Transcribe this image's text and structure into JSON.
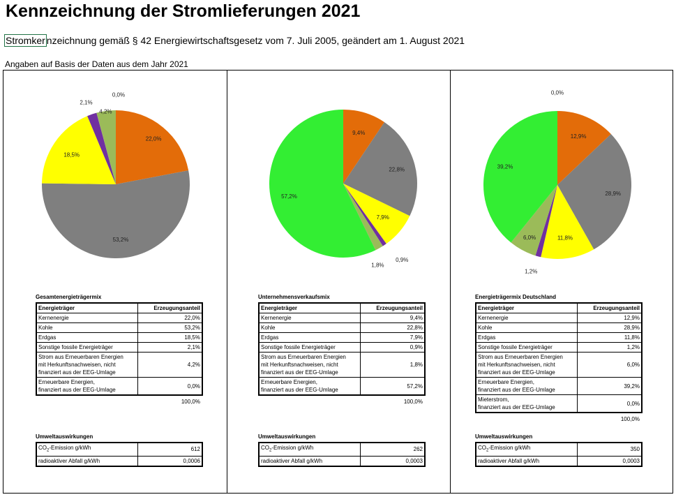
{
  "title": "Kennzeichnung der Stromlieferungen 2021",
  "subtitle_selected": "Stromker",
  "subtitle_rest": "nzeichnung gemäß § 42 Energiewirtschaftsgesetz vom 7. Juli 2005, geändert am 1. August 2021",
  "basis": "Angaben auf Basis der Daten aus dem Jahr 2021",
  "table_headers": {
    "source": "Energieträger",
    "share": "Erzeugungsanteil"
  },
  "env_title": "Umweltauswirkungen",
  "env_labels": {
    "co2_prefix": "CO",
    "co2_sub": "2",
    "co2_suffix": "-Emission g/kWh",
    "waste": "radioaktiver Abfall g/kWh"
  },
  "colors": {
    "kernenergie": "#E36C09",
    "kohle": "#7F7F7F",
    "erdgas": "#FFFF00",
    "sonstige_fossile": "#7030A0",
    "strom_herkunftsnachweise": "#9BBB59",
    "erneuerbare_eeg": "#33EE33"
  },
  "chart_data": [
    {
      "type": "pie",
      "title": "Gesamtenergieträgermix",
      "labels": [
        "Kernenergie",
        "Kohle",
        "Erdgas",
        "Sonstige fossile Energieträger",
        "Strom aus Erneuerbaren Energien mit Herkunftsnachweisen, nicht finanziert aus der EEG-Umlage",
        "Erneuerbare Energien, finanziert aus der EEG-Umlage"
      ],
      "values": [
        22.0,
        53.2,
        18.5,
        2.1,
        4.2,
        0.0
      ],
      "value_labels": [
        "22,0%",
        "53,2%",
        "18,5%",
        "2,1%",
        "4,2%",
        "0,0%"
      ]
    },
    {
      "type": "pie",
      "title": "Unternehmensverkaufsmix",
      "labels": [
        "Kernenergie",
        "Kohle",
        "Erdgas",
        "Sonstige fossile Energieträger",
        "Strom aus Erneuerbaren Energien mit Herkunftsnachweisen, nicht finanziert aus der EEG-Umlage",
        "Erneuerbare Energien, finanziert aus der EEG-Umlage"
      ],
      "values": [
        9.4,
        22.8,
        7.9,
        0.9,
        1.8,
        57.2
      ],
      "value_labels": [
        "9,4%",
        "22,8%",
        "7,9%",
        "0,9%",
        "1,8%",
        "57,2%"
      ]
    },
    {
      "type": "pie",
      "title": "Energieträgermix Deutschland",
      "labels": [
        "Kernenergie",
        "Kohle",
        "Erdgas",
        "Sonstige fossile Energieträger",
        "Strom aus Erneuerbaren Energien mit Herkunftsnachweisen, nicht finanziert aus der EEG-Umlage",
        "Erneuerbare Energien, finanziert aus der EEG-Umlage",
        "Mieterstrom, finanziert aus der EEG-Umlage"
      ],
      "values": [
        12.9,
        28.9,
        11.8,
        1.2,
        6.0,
        39.2,
        0.0
      ],
      "value_labels": [
        "12,9%",
        "28,9%",
        "11,8%",
        "1,2%",
        "6,0%",
        "39,2%",
        "0,0%"
      ]
    }
  ],
  "mixes": [
    {
      "title": "Gesamtenergieträgermix",
      "rows": [
        {
          "label": [
            "Kernenergie"
          ],
          "value": "22,0%"
        },
        {
          "label": [
            "Kohle"
          ],
          "value": "53,2%"
        },
        {
          "label": [
            "Erdgas"
          ],
          "value": "18,5%"
        },
        {
          "label": [
            "Sonstige fossile Energieträger"
          ],
          "value": "2,1%"
        },
        {
          "label": [
            "Strom aus Erneuerbaren Energien",
            "mit Herkunftsnachweisen, nicht",
            "finanziert aus der EEG-Umlage"
          ],
          "value": "4,2%"
        },
        {
          "label": [
            "Erneuerbare Energien,",
            "finanziert aus der EEG-Umlage"
          ],
          "value": "0,0%"
        }
      ],
      "total": "100,0%",
      "co2": "612",
      "waste": "0,0006"
    },
    {
      "title": "Unternehmensverkaufsmix",
      "rows": [
        {
          "label": [
            "Kernenergie"
          ],
          "value": "9,4%"
        },
        {
          "label": [
            "Kohle"
          ],
          "value": "22,8%"
        },
        {
          "label": [
            "Erdgas"
          ],
          "value": "7,9%"
        },
        {
          "label": [
            "Sonstige fossile Energieträger"
          ],
          "value": "0,9%"
        },
        {
          "label": [
            "Strom aus Erneuerbaren Energien",
            "mit Herkunftsnachweisen, nicht",
            "finanziert aus der EEG-Umlage"
          ],
          "value": "1,8%"
        },
        {
          "label": [
            "Erneuerbare Energien,",
            "finanziert aus der EEG-Umlage"
          ],
          "value": "57,2%"
        }
      ],
      "total": "100,0%",
      "co2": "262",
      "waste": "0,0003"
    },
    {
      "title": "Energieträgermix Deutschland",
      "rows": [
        {
          "label": [
            "Kernenergie"
          ],
          "value": "12,9%"
        },
        {
          "label": [
            "Kohle"
          ],
          "value": "28,9%"
        },
        {
          "label": [
            "Erdgas"
          ],
          "value": "11,8%"
        },
        {
          "label": [
            "Sonstige fossile Energieträger"
          ],
          "value": "1,2%"
        },
        {
          "label": [
            "Strom aus Erneuerbaren Energien",
            "mit Herkunftsnachweisen, nicht",
            "finanziert aus der EEG-Umlage"
          ],
          "value": "6,0%"
        },
        {
          "label": [
            "Erneuerbare Energien,",
            "finanziert aus der EEG-Umlage"
          ],
          "value": "39,2%"
        },
        {
          "label": [
            "Mieterstrom,",
            "finanziert aus der EEG-Umlage"
          ],
          "value": "0,0%"
        }
      ],
      "total": "100,0%",
      "co2": "350",
      "waste": "0,0003"
    }
  ]
}
